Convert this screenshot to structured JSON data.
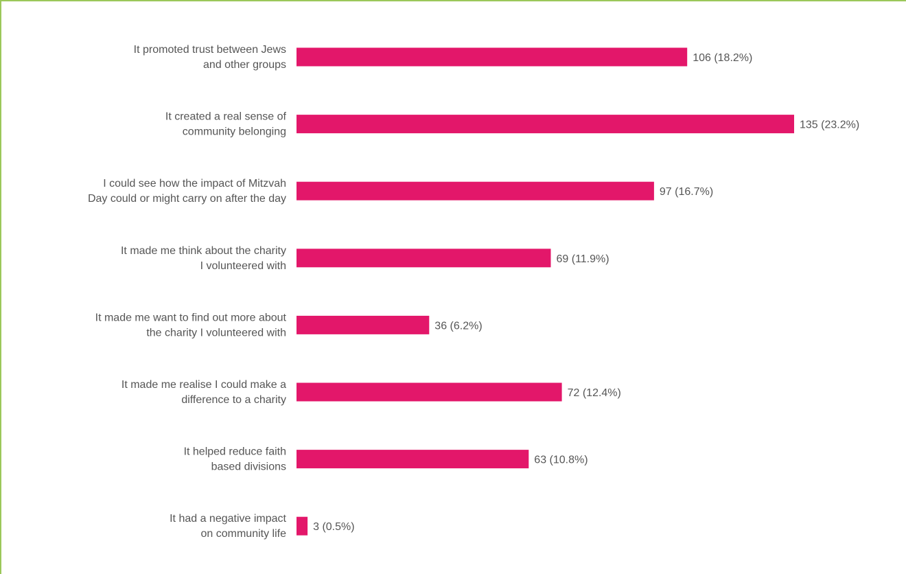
{
  "colors": {
    "bar": "#e3176a",
    "frame": "#9bc85a",
    "text": "#555555"
  },
  "chart_data": {
    "type": "bar",
    "orientation": "horizontal",
    "categories": [
      [
        "It promoted trust between Jews",
        "and other groups"
      ],
      [
        "It created a real sense of",
        "community belonging"
      ],
      [
        "I could see how the impact of Mitzvah",
        "Day could or might carry on after the day"
      ],
      [
        "It made me think about the charity",
        "I volunteered with"
      ],
      [
        "It made me want to find out more about",
        "the charity I volunteered with"
      ],
      [
        "It made me realise I could make a",
        "difference to a charity"
      ],
      [
        "It helped reduce faith",
        "based divisions"
      ],
      [
        "It had a negative impact",
        "on community life"
      ]
    ],
    "values": [
      106,
      135,
      97,
      69,
      36,
      72,
      63,
      3
    ],
    "percents": [
      "18.2%",
      "23.2%",
      "16.7%",
      "11.9%",
      "6.2%",
      "12.4%",
      "10.8%",
      "0.5%"
    ],
    "value_labels": [
      "106  (18.2%)",
      "135  (23.2%)",
      "97  (16.7%)",
      "69  (11.9%)",
      "36  (6.2%)",
      "72  (12.4%)",
      "63  (10.8%)",
      "3  (0.5%)"
    ],
    "title": "",
    "xlabel": "",
    "ylabel": "",
    "xlim": [
      0,
      135
    ],
    "grid": false,
    "legend": "none"
  }
}
